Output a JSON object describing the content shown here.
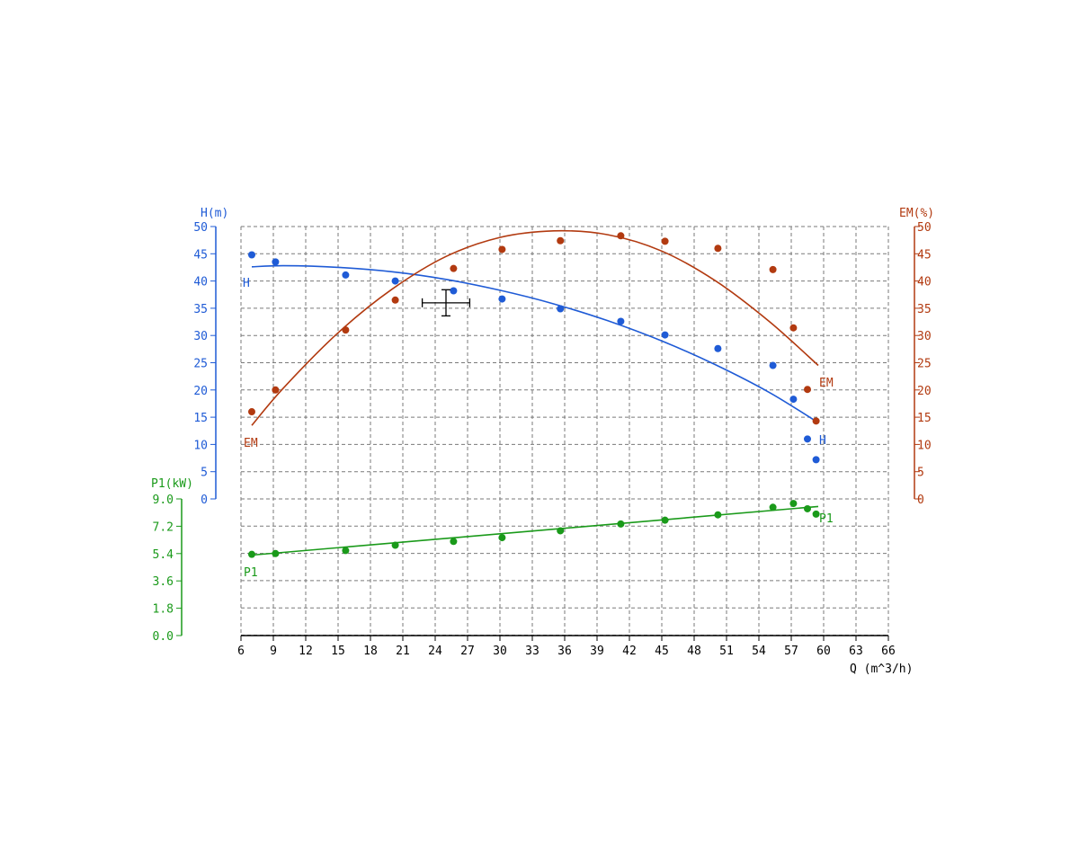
{
  "colors": {
    "h": "#1f5bd6",
    "em": "#b23a10",
    "p1": "#1a9a1a",
    "axis": "#000000",
    "grid": "#7a7a7a",
    "cursor": "#000000"
  },
  "chart_data": {
    "type": "scatter",
    "grid": true,
    "x_axis": {
      "label": "Q (m^3/h)",
      "ticks": [
        6,
        9,
        12,
        15,
        18,
        21,
        24,
        27,
        30,
        33,
        36,
        39,
        42,
        45,
        48,
        51,
        54,
        57,
        60,
        63,
        66
      ],
      "range": [
        6,
        66
      ]
    },
    "h_axis": {
      "label": "H(m)",
      "ticks": [
        0,
        5,
        10,
        15,
        20,
        25,
        30,
        35,
        40,
        45,
        50
      ],
      "range": [
        0,
        50
      ]
    },
    "em_axis": {
      "label": "EM(%)",
      "ticks": [
        0,
        5,
        10,
        15,
        20,
        25,
        30,
        35,
        40,
        45,
        50
      ],
      "range": [
        0,
        50
      ]
    },
    "p1_axis": {
      "label": "P1(kW)",
      "ticks": [
        "0.0",
        "1.8",
        "3.6",
        "5.4",
        "7.2",
        "9.0"
      ],
      "range": [
        0,
        9
      ]
    },
    "series": [
      {
        "name": "H",
        "axis": "h",
        "label": "H",
        "points": [
          [
            7,
            44.8
          ],
          [
            9.2,
            43.5
          ],
          [
            15.7,
            41.1
          ],
          [
            20.3,
            40
          ],
          [
            25.7,
            38.2
          ],
          [
            30.2,
            36.7
          ],
          [
            35.6,
            34.9
          ],
          [
            41.2,
            32.6
          ],
          [
            45.3,
            30.1
          ],
          [
            50.2,
            27.6
          ],
          [
            55.3,
            24.5
          ],
          [
            57.2,
            18.3
          ],
          [
            58.5,
            11
          ],
          [
            59.3,
            7.2
          ]
        ],
        "fit": [
          [
            7,
            42.6
          ],
          [
            10,
            42.8
          ],
          [
            15,
            42.5
          ],
          [
            20,
            41.7
          ],
          [
            25,
            40.3
          ],
          [
            30,
            38.3
          ],
          [
            35,
            35.8
          ],
          [
            40,
            32.7
          ],
          [
            45,
            29
          ],
          [
            50,
            24.6
          ],
          [
            55,
            19.5
          ],
          [
            59.5,
            14
          ]
        ]
      },
      {
        "name": "EM",
        "axis": "em",
        "label": "EM",
        "points": [
          [
            7,
            16
          ],
          [
            9.2,
            20
          ],
          [
            15.7,
            31
          ],
          [
            20.3,
            36.5
          ],
          [
            25.7,
            42.3
          ],
          [
            30.2,
            45.8
          ],
          [
            35.6,
            47.4
          ],
          [
            41.2,
            48.3
          ],
          [
            45.3,
            47.3
          ],
          [
            50.2,
            46
          ],
          [
            55.3,
            42.1
          ],
          [
            57.2,
            31.4
          ],
          [
            58.5,
            20.1
          ],
          [
            59.3,
            14.3
          ]
        ],
        "fit": [
          [
            7,
            13.5
          ],
          [
            10,
            20.5
          ],
          [
            15,
            30.5
          ],
          [
            20,
            38.5
          ],
          [
            25,
            44.5
          ],
          [
            30,
            48
          ],
          [
            35,
            49.2
          ],
          [
            40,
            48.5
          ],
          [
            45,
            45.5
          ],
          [
            50,
            40
          ],
          [
            55,
            32.5
          ],
          [
            59.5,
            24.5
          ]
        ]
      },
      {
        "name": "P1",
        "axis": "p1",
        "label": "P1",
        "points": [
          [
            7,
            5.35
          ],
          [
            9.2,
            5.4
          ],
          [
            15.7,
            5.6
          ],
          [
            20.3,
            5.95
          ],
          [
            25.7,
            6.2
          ],
          [
            30.2,
            6.45
          ],
          [
            35.6,
            6.9
          ],
          [
            41.2,
            7.35
          ],
          [
            45.3,
            7.6
          ],
          [
            50.2,
            7.95
          ],
          [
            55.3,
            8.45
          ],
          [
            57.2,
            8.7
          ],
          [
            58.5,
            8.35
          ],
          [
            59.3,
            8
          ]
        ],
        "fit": [
          [
            7,
            5.3
          ],
          [
            59.5,
            8.5
          ]
        ]
      }
    ],
    "cursor": {
      "x": 25,
      "h": 36,
      "x_span": [
        22.8,
        27.2
      ],
      "h_span": [
        33.6,
        38.4
      ]
    }
  }
}
